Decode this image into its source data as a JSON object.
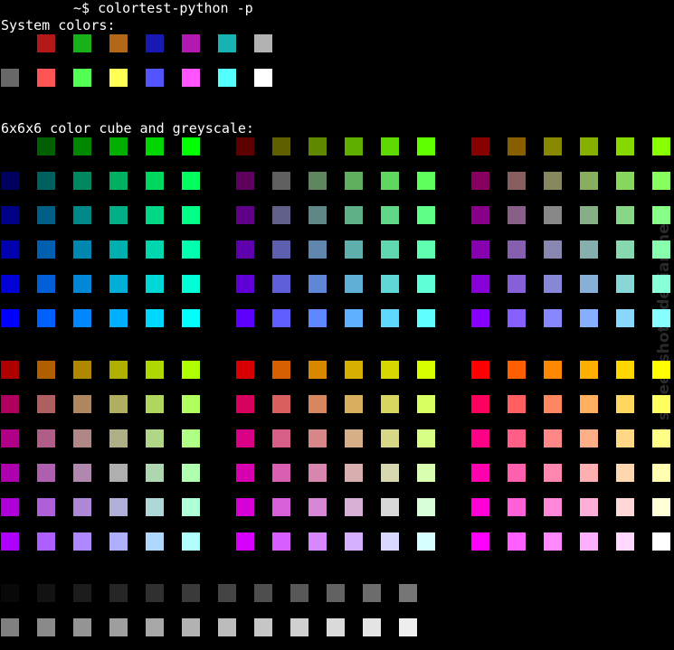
{
  "prompt": "~$ colortest-python -p",
  "sections": [
    {
      "label": "System colors:"
    },
    {
      "label": "6x6x6 color cube and greyscale:"
    }
  ],
  "watermark": "© screenshots.debian.net"
}
